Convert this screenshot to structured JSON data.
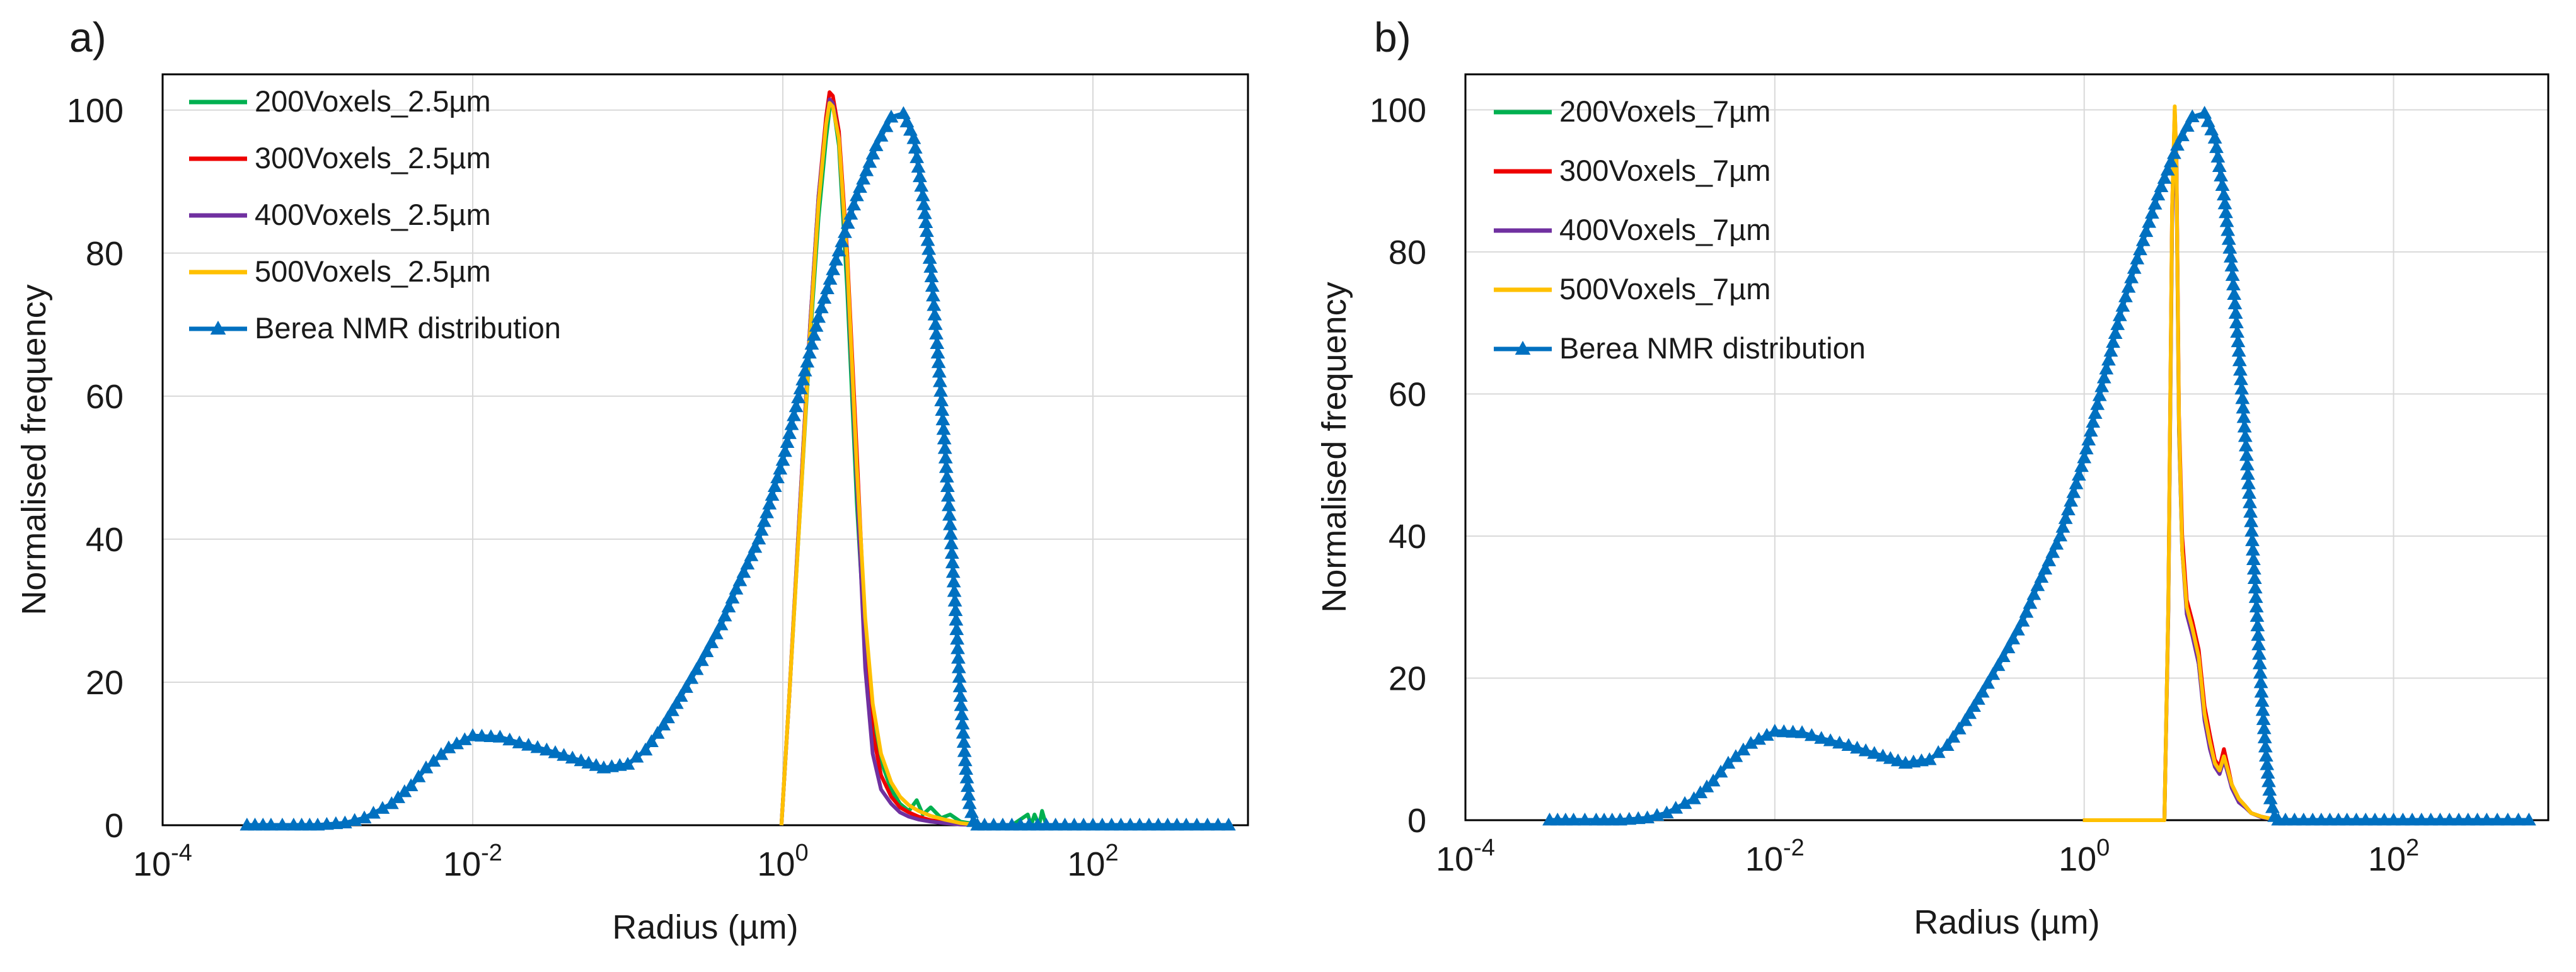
{
  "figure": {
    "panels": [
      {
        "label": "a)"
      },
      {
        "label": "b)"
      }
    ]
  },
  "colors": {
    "green": "#00b050",
    "red": "#ee0000",
    "purple": "#7030a0",
    "yellow": "#ffc000",
    "blue": "#0070c0",
    "axis": "#000000",
    "grid": "#d9d9d9"
  },
  "chart_data": [
    {
      "type": "line",
      "panel_label": "a)",
      "xscale": "log",
      "xlim": [
        0.0001,
        1000
      ],
      "ylim": [
        0,
        105
      ],
      "xlabel": "Radius (µm)",
      "ylabel": "Normalised frequency",
      "xticks": [
        {
          "base": "10",
          "exp": "-4"
        },
        {
          "base": "10",
          "exp": "-2"
        },
        {
          "base": "10",
          "exp": "0"
        },
        {
          "base": "10",
          "exp": "2"
        }
      ],
      "xtick_values": [
        0.0001,
        0.01,
        1,
        100
      ],
      "yticks": [
        0,
        20,
        40,
        60,
        80,
        100
      ],
      "grid": true,
      "legend_position": "top-left",
      "series": [
        {
          "name": "200Voxels_2.5µm",
          "color": "green",
          "marker": "none",
          "x": [
            0.98,
            1.1,
            1.3,
            1.5,
            1.7,
            1.9,
            2.0,
            2.1,
            2.3,
            2.6,
            3.0,
            3.4,
            3.8,
            4.3,
            5.0,
            5.7,
            6.5,
            7.3,
            8.0,
            9.0,
            10.5,
            12.0,
            14.0,
            17.0,
            20.0,
            30.0,
            38.0,
            40.0,
            42.0,
            45.0,
            47.0,
            50.0,
            60.0,
            100.0,
            300.0,
            700.0
          ],
          "y": [
            0,
            18,
            45,
            68,
            85,
            96,
            100,
            101,
            95,
            75,
            45,
            25,
            15,
            9,
            5,
            3,
            2,
            3.5,
            1.5,
            2.5,
            1,
            1.5,
            0.5,
            0.2,
            0,
            0,
            1.5,
            0,
            1.5,
            0,
            2,
            0,
            0,
            0,
            0,
            0
          ]
        },
        {
          "name": "300Voxels_2.5µm",
          "color": "red",
          "marker": "none",
          "x": [
            0.98,
            1.1,
            1.3,
            1.5,
            1.7,
            1.9,
            2.0,
            2.1,
            2.3,
            2.6,
            3.0,
            3.4,
            3.8,
            4.3,
            5.0,
            5.7,
            6.5,
            7.5,
            9.0,
            11.0,
            14.0,
            17.0,
            20.0
          ],
          "y": [
            0,
            18,
            46,
            70,
            88,
            99,
            102.5,
            102,
            97,
            80,
            52,
            27,
            13,
            7,
            4,
            2.5,
            1.8,
            1.2,
            0.7,
            0.4,
            0.2,
            0.1,
            0
          ]
        },
        {
          "name": "400Voxels_2.5µm",
          "color": "purple",
          "marker": "none",
          "x": [
            0.98,
            1.1,
            1.3,
            1.5,
            1.7,
            1.9,
            2.0,
            2.1,
            2.3,
            2.6,
            3.0,
            3.4,
            3.8,
            4.3,
            5.0,
            5.7,
            6.5,
            7.5,
            9.0,
            11.0,
            14.0,
            17.0,
            20.0
          ],
          "y": [
            0,
            18,
            46,
            70,
            88,
            98,
            101.5,
            101,
            96,
            78,
            48,
            22,
            10,
            5,
            3,
            1.8,
            1.2,
            0.8,
            0.5,
            0.3,
            0.1,
            0.05,
            0
          ]
        },
        {
          "name": "500Voxels_2.5µm",
          "color": "yellow",
          "marker": "none",
          "x": [
            0.98,
            1.1,
            1.3,
            1.5,
            1.7,
            1.9,
            2.0,
            2.1,
            2.3,
            2.6,
            3.0,
            3.4,
            3.8,
            4.3,
            5.0,
            5.7,
            6.5,
            7.5,
            9.0,
            11.0,
            14.0,
            17.0,
            20.0
          ],
          "y": [
            0,
            18,
            45,
            69,
            87,
            98,
            101,
            100.5,
            96,
            79,
            50,
            29,
            17,
            10,
            6,
            4,
            2.8,
            2.0,
            1.3,
            0.8,
            0.3,
            0.1,
            0
          ]
        },
        {
          "name": "Berea NMR distribution",
          "color": "blue",
          "marker": "triangle",
          "x": [
            0.00035,
            0.0005,
            0.0007,
            0.001,
            0.0015,
            0.002,
            0.003,
            0.004,
            0.005,
            0.007,
            0.01,
            0.015,
            0.02,
            0.03,
            0.05,
            0.07,
            0.1,
            0.13,
            0.17,
            0.22,
            0.3,
            0.4,
            0.5,
            0.7,
            1.0,
            1.3,
            1.7,
            2.2,
            3.0,
            4.0,
            5.0,
            6.0,
            7.0,
            8.0,
            9.0,
            10.0,
            11.0,
            12.0,
            13.0,
            14.0,
            15.0,
            16.0,
            17.0,
            18.0,
            20.0,
            30.0,
            50.0,
            100.0,
            200.0,
            400.0,
            750.0
          ],
          "y": [
            0,
            0,
            0,
            0,
            0.3,
            1,
            3,
            5.5,
            8,
            10.8,
            12.5,
            12.3,
            11.5,
            10.5,
            9,
            8,
            8.5,
            10.5,
            14,
            18,
            23,
            28,
            33,
            40,
            51,
            61,
            71,
            79,
            88,
            95,
            99,
            99.5,
            96,
            88,
            78,
            66,
            54,
            42,
            30,
            18,
            9,
            3,
            0.5,
            0,
            0,
            0,
            0,
            0,
            0,
            0,
            0
          ]
        }
      ]
    },
    {
      "type": "line",
      "panel_label": "b)",
      "xscale": "log",
      "xlim": [
        0.0001,
        1000
      ],
      "ylim": [
        0,
        105
      ],
      "xlabel": "Radius (µm)",
      "ylabel": "Normalised frequency",
      "xticks": [
        {
          "base": "10",
          "exp": "-4"
        },
        {
          "base": "10",
          "exp": "-2"
        },
        {
          "base": "10",
          "exp": "0"
        },
        {
          "base": "10",
          "exp": "2"
        }
      ],
      "xtick_values": [
        0.0001,
        0.01,
        1,
        100
      ],
      "yticks": [
        0,
        20,
        40,
        60,
        80,
        100
      ],
      "grid": true,
      "legend_position": "top-left",
      "series": [
        {
          "name": "200Voxels_7µm",
          "color": "green",
          "marker": "none",
          "x": [
            0.98,
            1.5,
            2.5,
            3.3,
            3.5,
            3.7,
            3.85,
            3.95,
            4.1,
            4.3,
            4.6,
            5.0,
            5.5,
            6.0,
            6.5,
            7.0,
            7.5,
            8.0,
            8.5,
            9.0,
            10.0,
            11.0,
            12.0,
            14.0,
            17.0,
            20.0,
            50.0,
            100.0,
            300.0,
            700.0
          ],
          "y": [
            0,
            0,
            0,
            0,
            30,
            85,
            99.5,
            92,
            55,
            38,
            30,
            27,
            22,
            15,
            11,
            8,
            7,
            9,
            7,
            5,
            3,
            2,
            1,
            0.5,
            0.1,
            0,
            0,
            0,
            0,
            0
          ]
        },
        {
          "name": "300Voxels_7µm",
          "color": "red",
          "marker": "none",
          "x": [
            0.98,
            1.5,
            2.5,
            3.3,
            3.5,
            3.7,
            3.85,
            3.95,
            4.1,
            4.3,
            4.6,
            5.0,
            5.5,
            6.0,
            6.5,
            7.0,
            7.5,
            8.0,
            8.5,
            9.0,
            10.0,
            11.0,
            12.0,
            14.0,
            17.0,
            20.0
          ],
          "y": [
            0,
            0,
            0,
            0,
            30,
            86,
            100,
            93,
            57,
            40,
            31,
            28,
            24,
            16,
            12,
            8.5,
            7.5,
            10,
            7.5,
            5,
            3,
            2,
            1,
            0.5,
            0.1,
            0
          ]
        },
        {
          "name": "400Voxels_7µm",
          "color": "purple",
          "marker": "none",
          "x": [
            0.98,
            1.5,
            2.5,
            3.3,
            3.5,
            3.7,
            3.85,
            3.95,
            4.1,
            4.3,
            4.6,
            5.0,
            5.5,
            6.0,
            6.5,
            7.0,
            7.5,
            8.0,
            8.5,
            9.0,
            10.0,
            11.0,
            12.0,
            14.0,
            17.0,
            20.0
          ],
          "y": [
            0,
            0,
            0,
            0,
            29,
            84,
            98,
            91,
            55,
            38,
            29,
            26,
            22,
            14,
            10,
            7.5,
            6.5,
            8.5,
            6.5,
            4.5,
            2.5,
            1.8,
            1,
            0.4,
            0.1,
            0
          ]
        },
        {
          "name": "500Voxels_7µm",
          "color": "yellow",
          "marker": "none",
          "x": [
            0.98,
            1.5,
            2.5,
            3.3,
            3.5,
            3.7,
            3.85,
            3.95,
            4.1,
            4.3,
            4.6,
            5.0,
            5.5,
            6.0,
            6.5,
            7.0,
            7.5,
            8.0,
            8.5,
            9.0,
            10.0,
            11.0,
            12.0,
            14.0,
            17.0,
            20.0
          ],
          "y": [
            0,
            0,
            0,
            0,
            30,
            86,
            100.5,
            92,
            56,
            38,
            30,
            27,
            23,
            15,
            11,
            8,
            7,
            9,
            7,
            5,
            3,
            2,
            1,
            0.5,
            0.1,
            0
          ]
        },
        {
          "name": "Berea NMR distribution",
          "color": "blue",
          "marker": "triangle",
          "x": [
            0.00035,
            0.0005,
            0.0007,
            0.001,
            0.0015,
            0.002,
            0.003,
            0.004,
            0.005,
            0.007,
            0.01,
            0.015,
            0.02,
            0.03,
            0.05,
            0.07,
            0.1,
            0.13,
            0.17,
            0.22,
            0.3,
            0.4,
            0.5,
            0.7,
            1.0,
            1.3,
            1.7,
            2.2,
            3.0,
            4.0,
            5.0,
            6.0,
            7.0,
            8.0,
            9.0,
            10.0,
            11.0,
            12.0,
            13.0,
            14.0,
            15.0,
            16.0,
            17.0,
            18.0,
            20.0,
            30.0,
            50.0,
            100.0,
            200.0,
            400.0,
            750.0
          ],
          "y": [
            0,
            0,
            0,
            0,
            0.3,
            1,
            3,
            5.5,
            8,
            10.8,
            12.5,
            12.3,
            11.5,
            10.5,
            9,
            8,
            8.5,
            10.5,
            14,
            18,
            23,
            28,
            33,
            40,
            51,
            61,
            71,
            79,
            88,
            95,
            99,
            99.5,
            96,
            88,
            78,
            66,
            54,
            42,
            30,
            18,
            9,
            3,
            0.5,
            0,
            0,
            0,
            0,
            0,
            0,
            0,
            0
          ]
        }
      ]
    }
  ]
}
